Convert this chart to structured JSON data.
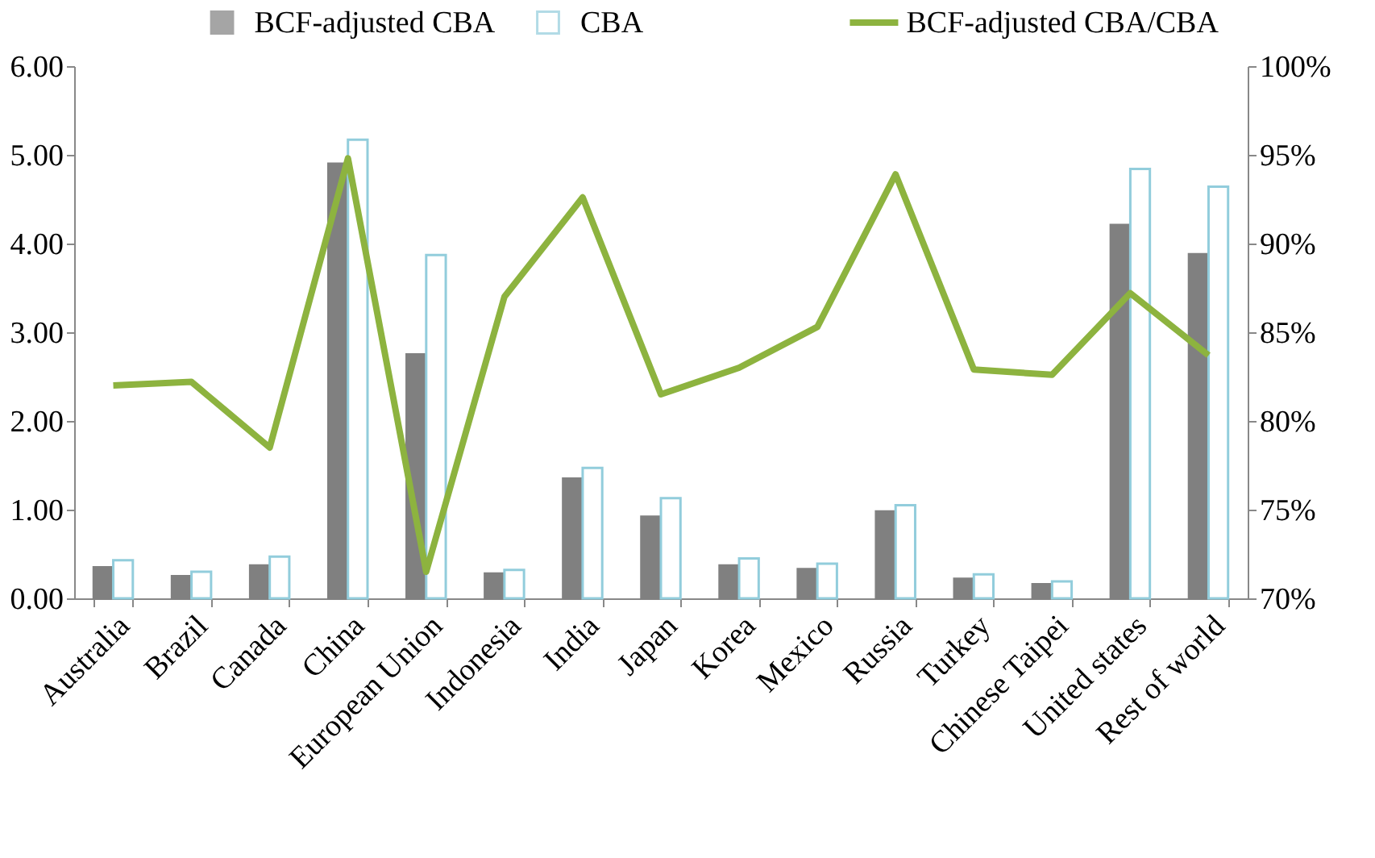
{
  "chart_data": {
    "type": "bar",
    "categories": [
      "Australia",
      "Brazil",
      "Canada",
      "China",
      "European Union",
      "Indonesia",
      "India",
      "Japan",
      "Korea",
      "Mexico",
      "Russia",
      "Turkey",
      "Chinese Taipei",
      "United states",
      "Rest of world"
    ],
    "series": [
      {
        "name": "BCF-adjusted CBA",
        "color": "#808080",
        "values": [
          0.35,
          0.25,
          0.37,
          4.9,
          2.75,
          0.28,
          1.35,
          0.92,
          0.37,
          0.33,
          0.98,
          0.22,
          0.16,
          4.21,
          3.88
        ]
      },
      {
        "name": "CBA",
        "color": "#92cddc",
        "values": [
          0.43,
          0.3,
          0.47,
          5.17,
          3.87,
          0.32,
          1.47,
          1.13,
          0.45,
          0.39,
          1.05,
          0.27,
          0.19,
          4.84,
          4.64
        ]
      },
      {
        "name": "BCF-adjusted CBA/CBA",
        "type": "line",
        "axis": "y2",
        "color": "#8db33f",
        "values": [
          82.0,
          82.2,
          78.5,
          94.8,
          71.5,
          87.0,
          92.6,
          81.5,
          83.0,
          85.3,
          93.9,
          82.9,
          82.6,
          87.2,
          83.7
        ]
      }
    ],
    "ylim": [
      0,
      6
    ],
    "yticks": [
      {
        "value": 0,
        "label": "0.00"
      },
      {
        "value": 1,
        "label": "1.00"
      },
      {
        "value": 2,
        "label": "2.00"
      },
      {
        "value": 3,
        "label": "3.00"
      },
      {
        "value": 4,
        "label": "4.00"
      },
      {
        "value": 5,
        "label": "5.00"
      },
      {
        "value": 6,
        "label": "6.00"
      }
    ],
    "y2lim": [
      70,
      100
    ],
    "y2ticks": [
      {
        "value": 70,
        "label": "70%"
      },
      {
        "value": 75,
        "label": "75%"
      },
      {
        "value": 80,
        "label": "80%"
      },
      {
        "value": 85,
        "label": "85%"
      },
      {
        "value": 90,
        "label": "90%"
      },
      {
        "value": 95,
        "label": "95%"
      },
      {
        "value": 100,
        "label": "100%"
      }
    ],
    "grid": false,
    "legend": "top"
  }
}
